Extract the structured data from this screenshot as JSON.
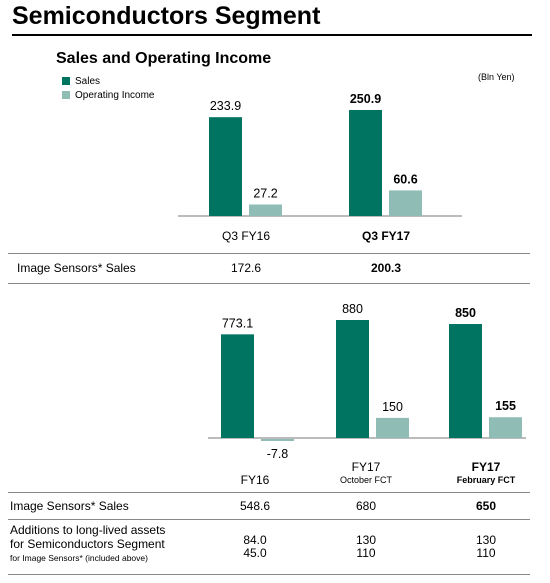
{
  "header": {
    "page_title": "Semiconductors Segment",
    "section_title": "Sales and Operating Income",
    "unit": "(Bln Yen)"
  },
  "legend": [
    {
      "label": "Sales",
      "color": "#007461"
    },
    {
      "label": "Operating Income",
      "color": "#8fbdb5"
    }
  ],
  "chart_data": [
    {
      "type": "bar",
      "categories": [
        "Q3 FY16",
        "Q3 FY17"
      ],
      "categories_bold": [
        false,
        true
      ],
      "series": [
        {
          "name": "Sales",
          "values": [
            233.9,
            250.9
          ],
          "labels": [
            "233.9",
            "250.9"
          ],
          "color": "#007461"
        },
        {
          "name": "Operating Income",
          "values": [
            27.2,
            60.6
          ],
          "labels": [
            "27.2",
            "60.6"
          ],
          "color": "#8fbdb5"
        }
      ]
    },
    {
      "type": "bar",
      "categories": [
        {
          "label": "FY16",
          "sub": ""
        },
        {
          "label": "FY17",
          "sub": "October FCT"
        },
        {
          "label": "FY17",
          "sub": "February FCT"
        }
      ],
      "categories_bold": [
        false,
        false,
        true
      ],
      "series": [
        {
          "name": "Sales",
          "values": [
            773.1,
            880,
            850
          ],
          "labels": [
            "773.1",
            "880",
            "850"
          ],
          "color": "#007461"
        },
        {
          "name": "Operating Income",
          "values": [
            -7.8,
            150,
            155
          ],
          "labels": [
            "-7.8",
            "150",
            "155"
          ],
          "color": "#8fbdb5"
        }
      ]
    }
  ],
  "quarter_table": {
    "label": "Image Sensors* Sales",
    "values": [
      "172.6",
      "200.3"
    ]
  },
  "annual_table": {
    "sensors_label": "Image Sensors* Sales",
    "sensors_values": [
      "548.6",
      "680",
      "650"
    ],
    "assets_label_1": "Additions to long-lived assets",
    "assets_label_2": "for Semiconductors Segment",
    "assets_label_3": "for Image Sensors* (included above)",
    "segment_values": [
      "84.0",
      "130",
      "130"
    ],
    "sensor_values": [
      "45.0",
      "110",
      "110"
    ]
  }
}
